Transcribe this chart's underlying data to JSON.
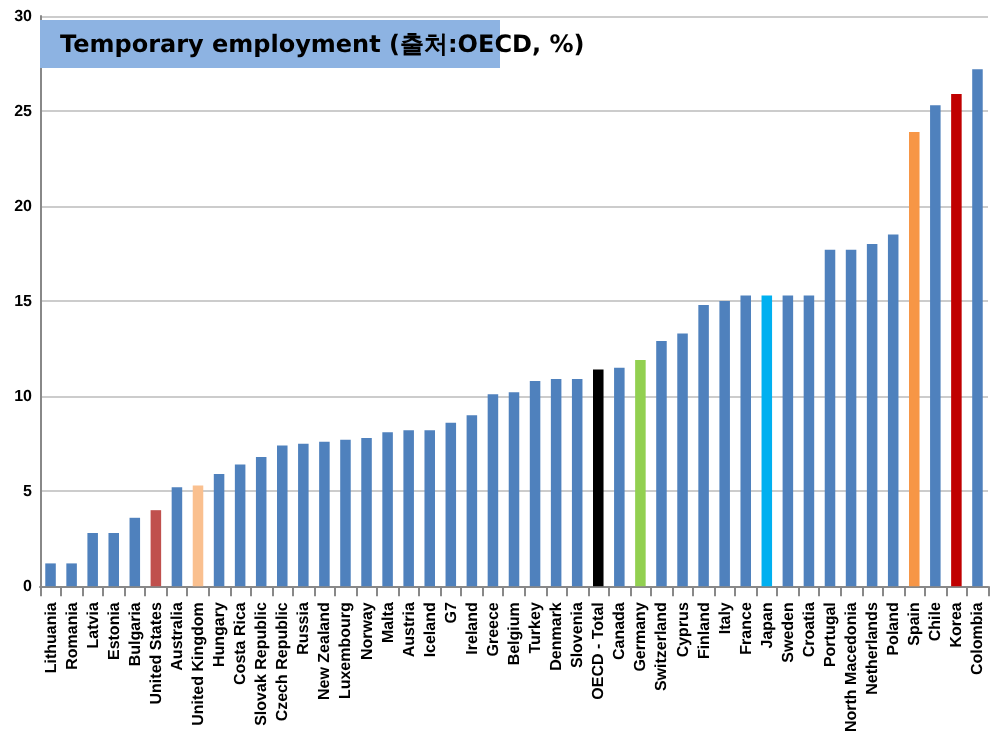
{
  "chart_data": {
    "type": "bar",
    "title": "Temporary employment (출처:OECD, %)",
    "categories": [
      "Lithuania",
      "Romania",
      "Latvia",
      "Estonia",
      "Bulgaria",
      "United States",
      "Australia",
      "United Kingdom",
      "Hungary",
      "Costa Rica",
      "Slovak Republic",
      "Czech Republic",
      "Russia",
      "New Zealand",
      "Luxembourg",
      "Norway",
      "Malta",
      "Austria",
      "Iceland",
      "G7",
      "Ireland",
      "Greece",
      "Belgium",
      "Turkey",
      "Denmark",
      "Slovenia",
      "OECD - Total",
      "Canada",
      "Germany",
      "Switzerland",
      "Cyprus",
      "Finland",
      "Italy",
      "France",
      "Japan",
      "Sweden",
      "Croatia",
      "Portugal",
      "North Macedonia",
      "Netherlands",
      "Poland",
      "Spain",
      "Chile",
      "Korea",
      "Colombia"
    ],
    "values": [
      1.2,
      1.2,
      2.8,
      2.8,
      3.6,
      4.0,
      5.2,
      5.3,
      5.9,
      6.4,
      6.8,
      7.4,
      7.5,
      7.6,
      7.7,
      7.8,
      8.1,
      8.2,
      8.2,
      8.6,
      9.0,
      10.1,
      10.2,
      10.8,
      10.9,
      10.9,
      11.4,
      11.5,
      11.9,
      12.9,
      13.3,
      14.8,
      15.0,
      15.3,
      15.3,
      15.3,
      15.3,
      17.7,
      17.7,
      18.0,
      18.5,
      23.9,
      25.3,
      25.9,
      27.2
    ],
    "colors": [
      "#4f81bd",
      "#4f81bd",
      "#4f81bd",
      "#4f81bd",
      "#4f81bd",
      "#c0504d",
      "#4f81bd",
      "#fac08f",
      "#4f81bd",
      "#4f81bd",
      "#4f81bd",
      "#4f81bd",
      "#4f81bd",
      "#4f81bd",
      "#4f81bd",
      "#4f81bd",
      "#4f81bd",
      "#4f81bd",
      "#4f81bd",
      "#4f81bd",
      "#4f81bd",
      "#4f81bd",
      "#4f81bd",
      "#4f81bd",
      "#4f81bd",
      "#4f81bd",
      "#000000",
      "#4f81bd",
      "#92d050",
      "#4f81bd",
      "#4f81bd",
      "#4f81bd",
      "#4f81bd",
      "#4f81bd",
      "#00b0f0",
      "#4f81bd",
      "#4f81bd",
      "#4f81bd",
      "#4f81bd",
      "#4f81bd",
      "#4f81bd",
      "#f79646",
      "#4f81bd",
      "#c00000",
      "#4f81bd"
    ],
    "ylim": [
      0,
      30
    ],
    "yticks": [
      0,
      5,
      10,
      15,
      20,
      25,
      30
    ],
    "grid": "y"
  }
}
